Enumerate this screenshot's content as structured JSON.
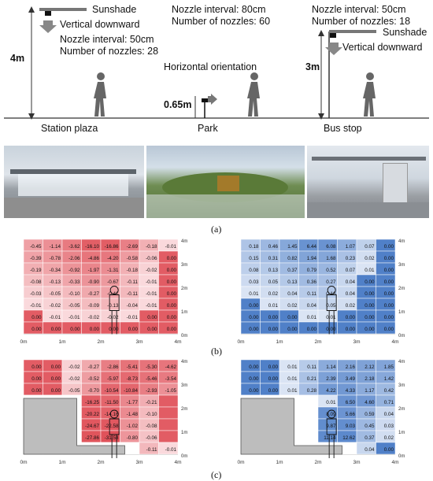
{
  "diagram": {
    "station": {
      "sunshade": "Sunshade",
      "direction": "Vertical downward",
      "nozzle_interval": "Nozzle interval: 50cm",
      "nozzles": "Number of nozzles: 28",
      "height": "4m",
      "name": "Station plaza"
    },
    "park": {
      "nozzle_interval": "Nozzle interval: 80cm",
      "nozzles": "Number of nozzles: 60",
      "direction": "Horizontal orientation",
      "height": "0.65m",
      "name": "Park"
    },
    "bus": {
      "nozzle_interval": "Nozzle interval: 50cm",
      "nozzles": "Number of nozzles: 18",
      "sunshade": "Sunshade",
      "direction": "Vertical downward",
      "height": "3m",
      "name": "Bus stop"
    },
    "captions": {
      "a": "(a)",
      "b": "(b)",
      "c": "(c)"
    },
    "x_ticks": [
      "0m",
      "1m",
      "2m",
      "3m",
      "4m"
    ],
    "y_ticks": [
      "4m",
      "3m",
      "2m",
      "1m",
      "0m"
    ],
    "colors": {
      "blue": "#4a7cc7",
      "red": "#e0525a",
      "gray": "#c0c0c0"
    }
  },
  "grids": {
    "b_left": [
      [
        "-0.45",
        "-1.14",
        "-3.62",
        "-16.10",
        "-16.86",
        "-2.69",
        "-0.18",
        "-0.01"
      ],
      [
        "-0.39",
        "-0.78",
        "-2.06",
        "-4.86",
        "-4.20",
        "-0.58",
        "-0.06",
        "0.00"
      ],
      [
        "-0.19",
        "-0.34",
        "-0.92",
        "-1.97",
        "-1.31",
        "-0.18",
        "-0.02",
        "0.00"
      ],
      [
        "-0.08",
        "-0.13",
        "-0.33",
        "-0.90",
        "-0.67",
        "-0.11",
        "-0.01",
        "0.00"
      ],
      [
        "-0.03",
        "-0.05",
        "-0.10",
        "-0.27",
        "-0.41",
        "-0.11",
        "-0.01",
        "0.00"
      ],
      [
        "-0.01",
        "-0.02",
        "-0.05",
        "-0.09",
        "-0.13",
        "-0.04",
        "-0.01",
        "0.00"
      ],
      [
        "0.00",
        "-0.01",
        "-0.01",
        "-0.02",
        "-0.02",
        "-0.01",
        "0.00",
        "0.00"
      ],
      [
        "0.00",
        "0.00",
        "0.00",
        "0.00",
        "0.00",
        "0.00",
        "0.00",
        "0.00"
      ]
    ],
    "b_right": [
      [
        "0.18",
        "0.46",
        "1.45",
        "6.44",
        "6.08",
        "1.07",
        "0.07",
        "0.00"
      ],
      [
        "0.15",
        "0.31",
        "0.82",
        "1.94",
        "1.68",
        "0.23",
        "0.02",
        "0.00"
      ],
      [
        "0.08",
        "0.13",
        "0.37",
        "0.79",
        "0.52",
        "0.07",
        "0.01",
        "0.00"
      ],
      [
        "0.03",
        "0.05",
        "0.13",
        "0.36",
        "0.27",
        "0.04",
        "0.00",
        "0.00"
      ],
      [
        "0.01",
        "0.02",
        "0.04",
        "0.11",
        "0.16",
        "0.04",
        "0.00",
        "0.00"
      ],
      [
        "0.00",
        "0.01",
        "0.02",
        "0.04",
        "0.05",
        "0.02",
        "0.00",
        "0.00"
      ],
      [
        "0.00",
        "0.00",
        "0.00",
        "0.01",
        "0.01",
        "0.00",
        "0.00",
        "0.00"
      ],
      [
        "0.00",
        "0.00",
        "0.00",
        "0.00",
        "0.00",
        "0.00",
        "0.00",
        "0.00"
      ]
    ],
    "c_left": [
      [
        "0.00",
        "0.00",
        "-0.02",
        "-0.27",
        "-2.86",
        "-5.41",
        "-5.30",
        "-4.62"
      ],
      [
        "0.00",
        "0.00",
        "-0.02",
        "-0.52",
        "-5.97",
        "-8.73",
        "-5.46",
        "-3.54"
      ],
      [
        "0.00",
        "0.00",
        "-0.05",
        "-0.70",
        "-10.54",
        "-10.84",
        "-2.93",
        "-1.05"
      ],
      [
        "",
        "",
        "",
        "-16.25",
        "-11.50",
        "-1.77",
        "-0.21",
        ""
      ],
      [
        "",
        "",
        "",
        "-20.22",
        "-14.16",
        "-1.48",
        "-0.10",
        ""
      ],
      [
        "",
        "",
        "",
        "-24.67",
        "-22.58",
        "-1.02",
        "-0.08",
        ""
      ],
      [
        "",
        "",
        "",
        "-27.86",
        "-31.58",
        "-0.80",
        "-0.06",
        ""
      ],
      [
        "",
        "",
        "",
        "",
        "",
        "",
        "-0.11",
        "-0.01"
      ]
    ],
    "c_right": [
      [
        "0.00",
        "0.00",
        "0.01",
        "0.11",
        "1.14",
        "2.16",
        "2.12",
        "1.85"
      ],
      [
        "0.00",
        "0.00",
        "0.01",
        "0.21",
        "2.39",
        "3.49",
        "2.18",
        "1.42"
      ],
      [
        "0.00",
        "0.00",
        "0.01",
        "0.28",
        "4.22",
        "4.33",
        "1.17",
        "0.42"
      ],
      [
        "",
        "",
        "",
        "",
        "0.01",
        "6.50",
        "4.60",
        "0.71"
      ],
      [
        "",
        "",
        "",
        "",
        "8.09",
        "5.66",
        "0.59",
        "0.04"
      ],
      [
        "",
        "",
        "",
        "",
        "9.87",
        "9.03",
        "0.45",
        "0.03"
      ],
      [
        "",
        "",
        "",
        "",
        "11.14",
        "12.62",
        "0.37",
        "0.02"
      ],
      [
        "",
        "",
        "",
        "",
        "",
        "",
        "0.04",
        "0.00"
      ]
    ]
  }
}
